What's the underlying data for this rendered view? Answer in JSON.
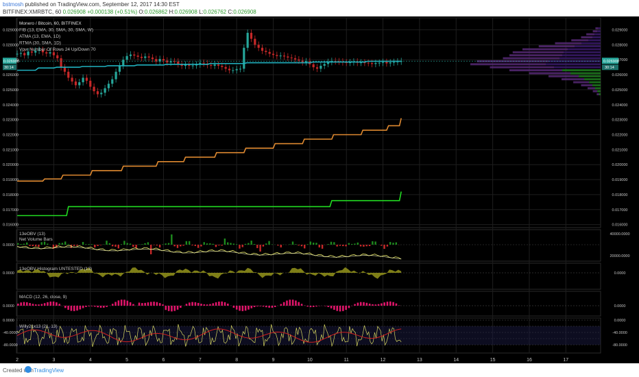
{
  "header": {
    "author": "bstmosh",
    "published_text": "published on TradingView.com, September 12, 2017 14:30 EST",
    "symbol_line_prefix": "BITFINEX:XMRBTC, 60",
    "last_price": "0.026908",
    "change": "+0.000138 (+0.51%)",
    "ohlc": {
      "o_label": "O:",
      "o": "0.026862",
      "h_label": "H:",
      "h": "0.026908",
      "l_label": "L:",
      "l": "0.026762",
      "c_label": "C:",
      "c": "0.026908"
    }
  },
  "footer": {
    "created_with": "Created with",
    "brand": "TradingView"
  },
  "colors": {
    "background": "#000000",
    "grid": "#1e1e1e",
    "up": "#26a69a",
    "down": "#c62828",
    "cyan_line": "#20b2c0",
    "orange_line": "#e08a30",
    "green_line": "#22dd22",
    "obv_yellow": "#d8d860",
    "obv_red": "#c62828",
    "hist_olive": "#8c8c1a",
    "macd_magenta": "#e0156a",
    "willy_yellow": "#d8d860",
    "willy_red": "#d02020",
    "price_label_bg": "#26a69a"
  },
  "panels": {
    "main": {
      "legend": [
        "Monero / Bitcoin, 60, BITFINEX",
        "FIB (13, EMA, 30, SMA, 30, SMA, W)",
        "ATMA (13, EMA, 1D)",
        "RTMA (30, SMA, 1D)",
        "Vpvr Number Of Rows 24 Up/Down 70"
      ],
      "y_ticks": [
        "0.029000",
        "0.028000",
        "0.027000",
        "0.026000",
        "0.025000",
        "0.024000",
        "0.023000",
        "0.022000",
        "0.021000",
        "0.020000",
        "0.019000",
        "0.018000",
        "0.017000",
        "0.016000"
      ],
      "last_label": "0.026908",
      "countdown_label": "30:14"
    },
    "obv": {
      "legend": [
        "13eOBV (13)",
        "Net Volume Bars"
      ],
      "y_ticks_left": [
        "0.0000"
      ],
      "y_ticks_right": [
        "40000.0000",
        "20000.0000"
      ]
    },
    "hist": {
      "legend": [
        "13eOBV Histogram UNTESTED (13)"
      ],
      "y_ticks_left": [
        "0.0000"
      ],
      "y_ticks_right": [
        "0.0000"
      ]
    },
    "macd": {
      "legend": [
        "MACD (12, 26, close, 9)"
      ],
      "y_ticks_left": [
        "0.0000"
      ],
      "y_ticks_right": [
        "0.0000"
      ]
    },
    "willy": {
      "legend": [
        "Willy21x13 (21, 13)"
      ],
      "y_ticks_left": [
        "0.0000",
        "-40.0000",
        "-80.0000"
      ],
      "y_ticks_right": [
        "0.0000",
        "-40.0000",
        "-80.0000"
      ]
    }
  },
  "chart_data": {
    "type": "candlestick",
    "symbol": "BITFINEX:XMRBTC",
    "interval": "60",
    "x_ticks": [
      "2",
      "3",
      "4",
      "5",
      "6",
      "7",
      "8",
      "9",
      "10",
      "11",
      "12",
      "13",
      "14",
      "15",
      "16",
      "17"
    ],
    "x_range": [
      1.98,
      17.95
    ],
    "data_end_x": 12.5,
    "ylim": [
      0.0158,
      0.0298
    ],
    "candles": {
      "start_x": 2.0,
      "step": 0.1,
      "close": [
        0.0274,
        0.02745,
        0.0273,
        0.02755,
        0.02748,
        0.0276,
        0.02765,
        0.0275,
        0.02742,
        0.0275,
        0.0273,
        0.0271,
        0.0265,
        0.0262,
        0.0258,
        0.02555,
        0.0253,
        0.0255,
        0.0258,
        0.0256,
        0.0252,
        0.0249,
        0.0247,
        0.0248,
        0.0251,
        0.0254,
        0.0257,
        0.0262,
        0.0266,
        0.027,
        0.02725,
        0.02735,
        0.02728,
        0.0272,
        0.02712,
        0.02722,
        0.02715,
        0.02705,
        0.02688,
        0.02705,
        0.02695,
        0.02682,
        0.0269,
        0.02688,
        0.0267,
        0.0266,
        0.02668,
        0.0266,
        0.02662,
        0.02668,
        0.0268,
        0.02675,
        0.02665,
        0.0266,
        0.02668,
        0.0266,
        0.02652,
        0.0264,
        0.0263,
        0.0263,
        0.02638,
        0.0264,
        0.0278,
        0.0288,
        0.0284,
        0.028,
        0.0278,
        0.0276,
        0.02752,
        0.0274,
        0.02732,
        0.02725,
        0.02728,
        0.02722,
        0.02715,
        0.0271,
        0.02702,
        0.02695,
        0.02683,
        0.0269,
        0.0267,
        0.0265,
        0.0264,
        0.0266,
        0.02672,
        0.02685,
        0.02692,
        0.0269,
        0.02688,
        0.02683,
        0.0268,
        0.02683,
        0.02688,
        0.0268,
        0.02682,
        0.0268,
        0.02678,
        0.02672,
        0.02678,
        0.0268,
        0.02685,
        0.02676,
        0.02682,
        0.02685,
        0.02688,
        0.02691
      ]
    },
    "series": [
      {
        "name": "FIB (13, EMA, 30, SMA, 30, SMA, W)",
        "color": "#20b2c0",
        "points": [
          [
            2.0,
            0.0263
          ],
          [
            2.5,
            0.0263
          ],
          [
            2.58,
            0.02645
          ],
          [
            3.0,
            0.02645
          ],
          [
            3.08,
            0.0265
          ],
          [
            3.7,
            0.0265
          ],
          [
            3.78,
            0.02655
          ],
          [
            4.4,
            0.02655
          ],
          [
            4.48,
            0.0266
          ],
          [
            5.2,
            0.0266
          ],
          [
            5.28,
            0.02665
          ],
          [
            6.0,
            0.02665
          ],
          [
            6.08,
            0.0267
          ],
          [
            7.2,
            0.0267
          ],
          [
            7.28,
            0.02675
          ],
          [
            8.2,
            0.02675
          ],
          [
            8.28,
            0.0268
          ],
          [
            10.0,
            0.0268
          ],
          [
            10.08,
            0.02685
          ],
          [
            11.5,
            0.02685
          ],
          [
            11.58,
            0.0269
          ],
          [
            12.5,
            0.0269
          ]
        ]
      },
      {
        "name": "ATMA (13, EMA, 1D)",
        "color": "#e08a30",
        "points": [
          [
            2.0,
            0.0189
          ],
          [
            2.7,
            0.0189
          ],
          [
            2.75,
            0.01905
          ],
          [
            3.2,
            0.01905
          ],
          [
            3.25,
            0.0193
          ],
          [
            4.0,
            0.0193
          ],
          [
            4.05,
            0.0196
          ],
          [
            4.85,
            0.0196
          ],
          [
            4.9,
            0.0199
          ],
          [
            5.8,
            0.0199
          ],
          [
            5.85,
            0.0202
          ],
          [
            6.55,
            0.0202
          ],
          [
            6.6,
            0.0205
          ],
          [
            7.4,
            0.0205
          ],
          [
            7.45,
            0.0208
          ],
          [
            8.2,
            0.0208
          ],
          [
            8.25,
            0.0211
          ],
          [
            9.0,
            0.0211
          ],
          [
            9.05,
            0.0214
          ],
          [
            9.8,
            0.0214
          ],
          [
            9.85,
            0.0217
          ],
          [
            10.6,
            0.0217
          ],
          [
            10.65,
            0.022
          ],
          [
            11.4,
            0.022
          ],
          [
            11.45,
            0.0223
          ],
          [
            12.1,
            0.0223
          ],
          [
            12.15,
            0.0226
          ],
          [
            12.45,
            0.0226
          ],
          [
            12.5,
            0.0231
          ]
        ]
      },
      {
        "name": "RTMA (30, SMA, 1D)",
        "color": "#22dd22",
        "points": [
          [
            2.0,
            0.0166
          ],
          [
            3.35,
            0.0166
          ],
          [
            3.4,
            0.0172
          ],
          [
            10.55,
            0.0172
          ],
          [
            10.6,
            0.0176
          ],
          [
            12.45,
            0.0176
          ],
          [
            12.5,
            0.0182
          ]
        ]
      }
    ]
  }
}
